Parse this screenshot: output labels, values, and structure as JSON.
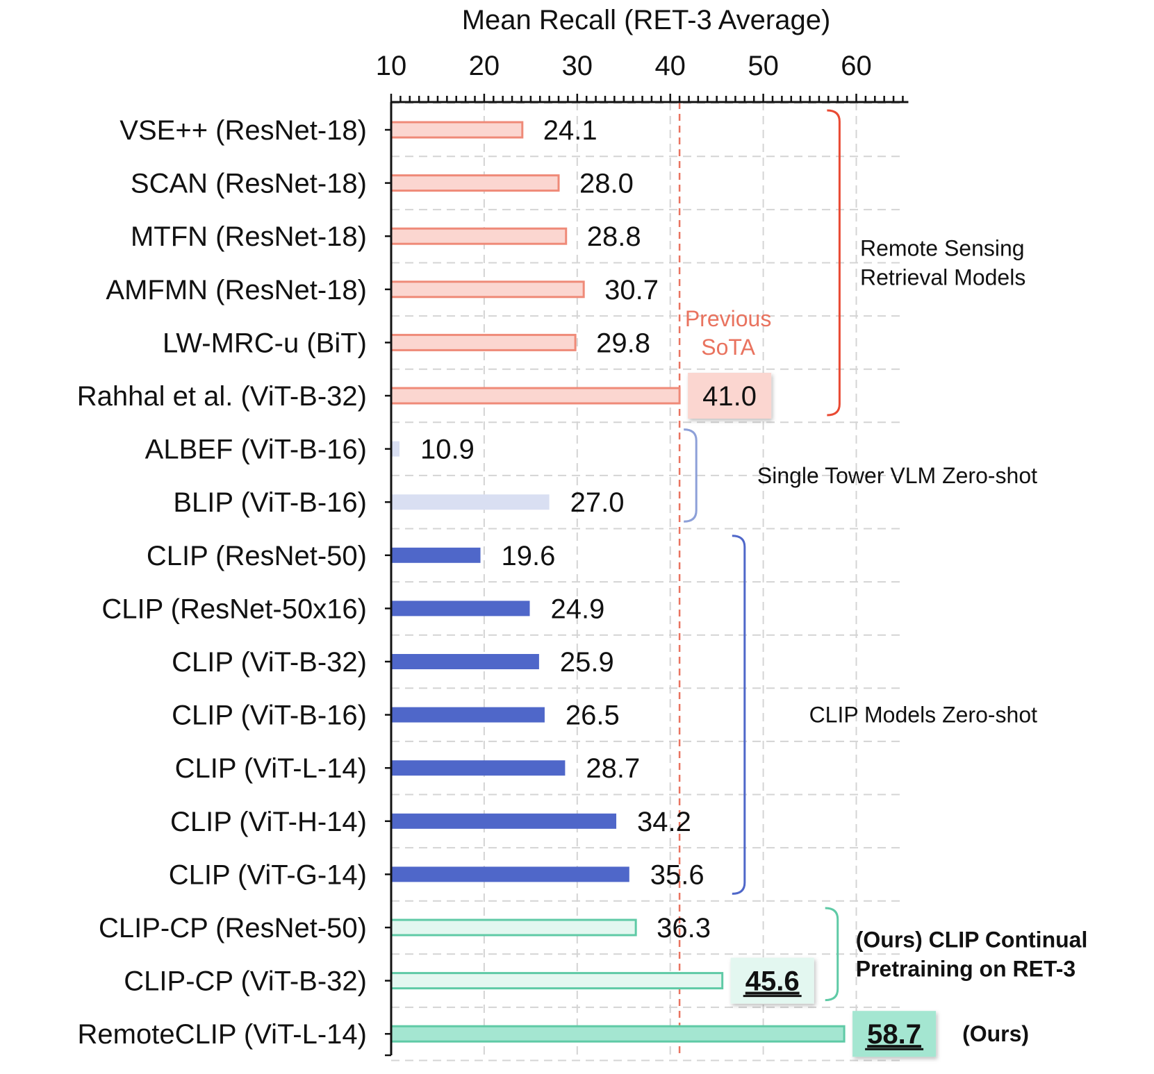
{
  "chart_data": {
    "type": "bar",
    "orientation": "horizontal",
    "title": "Mean Recall (RET-3 Average)",
    "xlim": [
      10,
      65
    ],
    "xticks": [
      10,
      20,
      30,
      40,
      50,
      60
    ],
    "grid": true,
    "categories": [
      "VSE++ (ResNet-18)",
      "SCAN (ResNet-18)",
      "MTFN (ResNet-18)",
      "AMFMN (ResNet-18)",
      "LW-MRC-u (BiT)",
      "Rahhal et al. (ViT-B-32)",
      "ALBEF (ViT-B-16)",
      "BLIP (ViT-B-16)",
      "CLIP (ResNet-50)",
      "CLIP (ResNet-50x16)",
      "CLIP (ViT-B-32)",
      "CLIP (ViT-B-16)",
      "CLIP (ViT-L-14)",
      "CLIP (ViT-H-14)",
      "CLIP (ViT-G-14)",
      "CLIP-CP (ResNet-50)",
      "CLIP-CP (ViT-B-32)",
      "RemoteCLIP (ViT-L-14)"
    ],
    "values": [
      24.1,
      28.0,
      28.8,
      30.7,
      29.8,
      41.0,
      10.9,
      27.0,
      19.6,
      24.9,
      25.9,
      26.5,
      28.7,
      34.2,
      35.6,
      36.3,
      45.6,
      58.7
    ],
    "value_labels": [
      "24.1",
      "28.0",
      "28.8",
      "30.7",
      "29.8",
      "41.0",
      "10.9",
      "27.0",
      "19.6",
      "24.9",
      "25.9",
      "26.5",
      "28.7",
      "34.2",
      "35.6",
      "36.3",
      "45.6",
      "58.7"
    ],
    "groups": [
      {
        "label": "Remote Sensing Retrieval Models",
        "lines": [
          "Remote Sensing",
          "Retrieval Models"
        ],
        "start": 0,
        "end": 5,
        "fill": "#fbd6d0",
        "stroke": "#ef8a78",
        "bracket_color": "#e94a33",
        "bracket_at": 58.2,
        "style": "outline"
      },
      {
        "label": "Single Tower VLM Zero-shot",
        "lines": [
          "Single Tower VLM Zero-shot"
        ],
        "start": 6,
        "end": 7,
        "fill": "#d9dff2",
        "stroke": "#d9dff2",
        "bracket_color": "#8da0d8",
        "bracket_at": 42.8,
        "style": "solid"
      },
      {
        "label": "CLIP Models Zero-shot",
        "lines": [
          "CLIP Models Zero-shot"
        ],
        "start": 8,
        "end": 14,
        "fill": "#4f67c9",
        "stroke": "#4f67c9",
        "bracket_color": "#4f67c9",
        "bracket_at": 48.0,
        "style": "solid"
      },
      {
        "label": "(Ours) CLIP Continual Pretraining on RET-3",
        "lines": [
          "(Ours) CLIP Continual",
          "Pretraining on RET-3"
        ],
        "start": 15,
        "end": 16,
        "fill": "#e3f7f0",
        "stroke": "#5fcaa6",
        "bracket_color": "#5fcaa6",
        "bracket_at": 58.0,
        "style": "outline",
        "bold": true
      },
      {
        "label": "(Ours)",
        "lines": [
          "(Ours)"
        ],
        "start": 17,
        "end": 17,
        "fill": "#a4e6d1",
        "stroke": "#5fcaa6",
        "bracket_color": null,
        "style": "outline",
        "bold": true
      }
    ],
    "highlighted": [
      {
        "index": 5,
        "box_color": "#fbd6d0",
        "underline": false,
        "bold": false
      },
      {
        "index": 16,
        "box_color": "#e3f7f0",
        "underline": true,
        "bold": true
      },
      {
        "index": 17,
        "box_color": "#a4e6d1",
        "underline": true,
        "bold": true
      }
    ],
    "reference_line": {
      "value": 41.0,
      "label_lines": [
        "Previous",
        "SoTA"
      ],
      "color": "#e9735f"
    }
  }
}
